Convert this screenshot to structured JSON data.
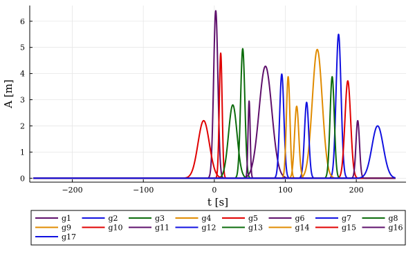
{
  "chart_data": {
    "type": "line",
    "xlabel": "t [s]",
    "ylabel": "A [m]",
    "xlim": [
      -260,
      270
    ],
    "ylim": [
      -0.15,
      6.6
    ],
    "x_data_range": [
      -255,
      255
    ],
    "xticks": [
      -200,
      -100,
      0,
      100,
      200
    ],
    "yticks": [
      0,
      1,
      2,
      3,
      4,
      5,
      6
    ],
    "grid": true,
    "legend_position": "outside-bottom",
    "legend_columns": 8,
    "series": [
      {
        "name": "g1",
        "color": "#5e0f6b",
        "peak_t": 2,
        "peak_a": 6.4,
        "width": 3.0
      },
      {
        "name": "g2",
        "color": "#1010e0",
        "peak_t": 175,
        "peak_a": 5.5,
        "width": 3.5
      },
      {
        "name": "g3",
        "color": "#0b6b0b",
        "peak_t": 40,
        "peak_a": 4.95,
        "width": 3.0
      },
      {
        "name": "g4",
        "color": "#e08b00",
        "peak_t": 145,
        "peak_a": 4.92,
        "width": 7.0
      },
      {
        "name": "g5",
        "color": "#e00000",
        "peak_t": 188,
        "peak_a": 3.72,
        "width": 4.0
      },
      {
        "name": "g6",
        "color": "#5e0f6b",
        "peak_t": 72,
        "peak_a": 4.28,
        "width": 9.0
      },
      {
        "name": "g7",
        "color": "#1010e0",
        "peak_t": 95,
        "peak_a": 3.98,
        "width": 3.0
      },
      {
        "name": "g8",
        "color": "#0b6b0b",
        "peak_t": 166,
        "peak_a": 3.88,
        "width": 3.0
      },
      {
        "name": "g9",
        "color": "#e08b00",
        "peak_t": 104,
        "peak_a": 3.88,
        "width": 2.5
      },
      {
        "name": "g10",
        "color": "#e00000",
        "peak_t": 9,
        "peak_a": 4.78,
        "width": 2.0
      },
      {
        "name": "g11",
        "color": "#5e0f6b",
        "peak_t": 49,
        "peak_a": 2.95,
        "width": 1.5
      },
      {
        "name": "g12",
        "color": "#1010e0",
        "peak_t": 130,
        "peak_a": 2.9,
        "width": 3.0
      },
      {
        "name": "g13",
        "color": "#0b6b0b",
        "peak_t": 26,
        "peak_a": 2.8,
        "width": 6.0
      },
      {
        "name": "g14",
        "color": "#e08b00",
        "peak_t": 116,
        "peak_a": 2.75,
        "width": 3.0
      },
      {
        "name": "g15",
        "color": "#e00000",
        "peak_t": -15,
        "peak_a": 2.2,
        "width": 8.0
      },
      {
        "name": "g16",
        "color": "#5e0f6b",
        "peak_t": 202,
        "peak_a": 2.2,
        "width": 2.5
      },
      {
        "name": "g17",
        "color": "#1010e0",
        "peak_t": 230,
        "peak_a": 2.0,
        "width": 8.0
      }
    ]
  }
}
